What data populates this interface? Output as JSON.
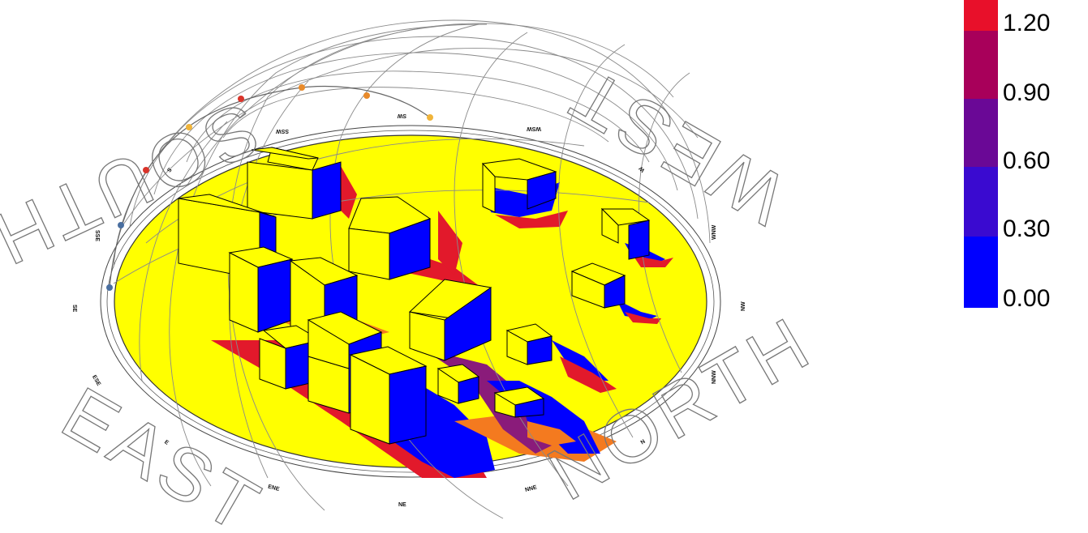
{
  "legend": {
    "colors": [
      "#e8102a",
      "#a8005a",
      "#6a0896",
      "#3a0ad0",
      "#0000ff"
    ],
    "labels": [
      "1.20",
      "0.90",
      "0.60",
      "0.30",
      "0.00"
    ]
  },
  "compass": {
    "big": {
      "south": "SOUTH",
      "west": "WEST",
      "east": "EAST",
      "north": "NORTH"
    },
    "small": {
      "ssw": "SSW",
      "sw": "SW",
      "wsw": "WSW",
      "s": "S",
      "sse": "SSE",
      "se": "SE",
      "ese": "ESE",
      "e": "E",
      "ene": "ENE",
      "ne": "NE",
      "nne": "NNE",
      "n": "N",
      "nnw": "NNW",
      "nw": "NW",
      "wnw": "WNW",
      "w": "W"
    }
  },
  "colors": {
    "ground": "#ffff00",
    "shadow_high": "#0000ff",
    "shadow_mid": "#e2192b",
    "shadow_low": "#f47a1f",
    "sun_markers": [
      "#4a6fa0",
      "#d9342a",
      "#e88a2a",
      "#f0b43a"
    ]
  }
}
